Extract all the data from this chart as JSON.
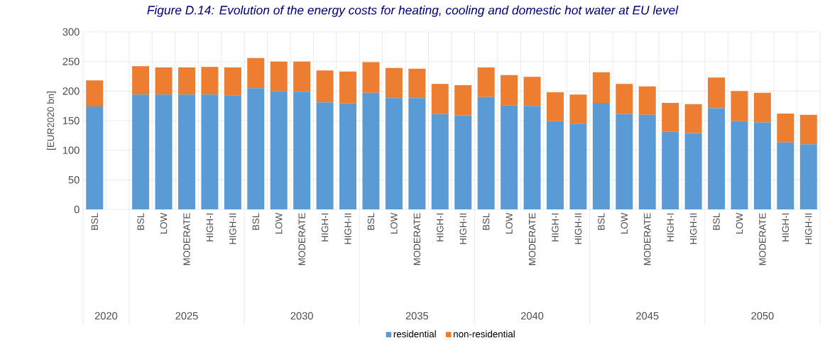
{
  "chart_data": {
    "type": "bar",
    "stacked": true,
    "title": "Figure D.14: Evolution of the energy costs for heating, cooling and domestic hot water at EU level",
    "ylabel": "[EUR2020 bn]",
    "categories": [
      "BSL",
      null,
      "BSL",
      "LOW",
      "MODERATE",
      "HIGH-I",
      "HIGH-II",
      "BSL",
      "LOW",
      "MODERATE",
      "HIGH-I",
      "HIGH-II",
      "BSL",
      "LOW",
      "MODERATE",
      "HIGH-I",
      "HIGH-II",
      "BSL",
      "LOW",
      "MODERATE",
      "HIGH-I",
      "HIGH-II",
      "BSL",
      "LOW",
      "MODERATE",
      "HIGH-I",
      "HIGH-II",
      "BSL",
      "LOW",
      "MODERATE",
      "HIGH-I",
      "HIGH-II"
    ],
    "series": [
      {
        "name": "residential",
        "color": "#5b9bd5",
        "values": [
          174,
          null,
          194,
          194,
          194,
          194,
          193,
          205,
          200,
          199,
          181,
          179,
          197,
          188,
          188,
          161,
          159,
          190,
          176,
          175,
          149,
          145,
          180,
          161,
          160,
          131,
          129,
          171,
          149,
          147,
          113,
          110
        ]
      },
      {
        "name": "non-residential",
        "color": "#ed7d31",
        "values": [
          44,
          null,
          48,
          46,
          46,
          47,
          47,
          51,
          50,
          51,
          54,
          54,
          52,
          51,
          50,
          51,
          51,
          50,
          51,
          49,
          49,
          49,
          52,
          51,
          48,
          49,
          49,
          52,
          51,
          50,
          49,
          50
        ]
      }
    ],
    "ylim": [
      0,
      300
    ],
    "yticks": [
      0,
      50,
      100,
      150,
      200,
      250,
      300
    ],
    "grid": true,
    "legend": "bottom",
    "annotations": [
      "2020",
      "2025",
      "2030",
      "2035",
      "2040",
      "2045",
      "2050"
    ]
  }
}
